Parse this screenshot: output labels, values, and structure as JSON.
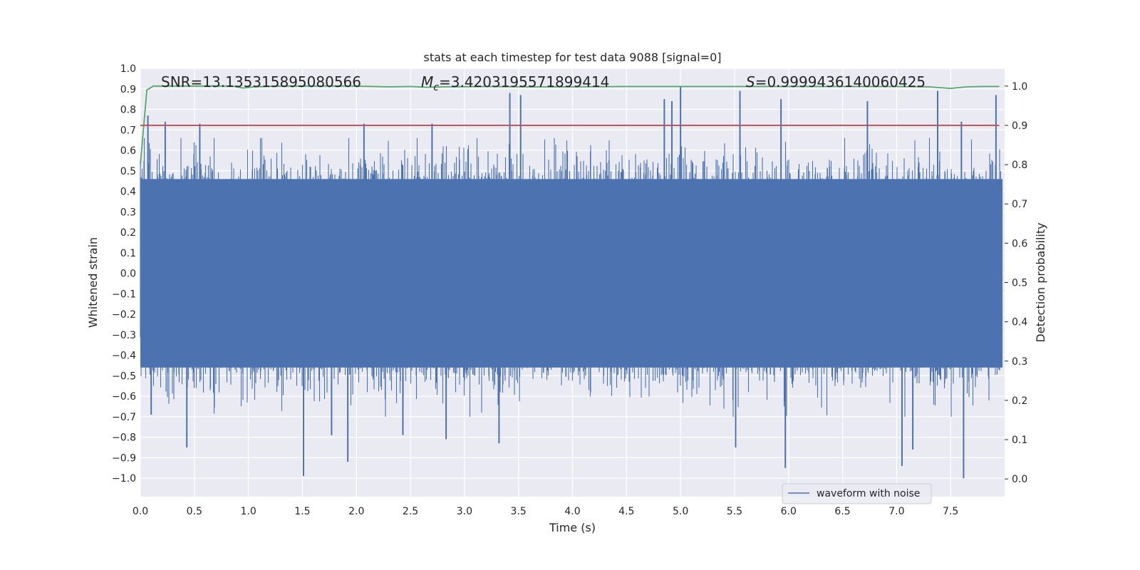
{
  "chart_data": {
    "type": "line",
    "title": "stats at each timestep for test data 9088 [signal=0]",
    "xlabel": "Time (s)",
    "ylabel": "Whitened strain",
    "y2label": "Detection probability",
    "xlim": [
      0.0,
      8.0
    ],
    "ylim": [
      -1.09,
      1.0
    ],
    "y2lim": [
      -0.045,
      1.045
    ],
    "xticks": [
      "0.0",
      "0.5",
      "1.0",
      "1.5",
      "2.0",
      "2.5",
      "3.0",
      "3.5",
      "4.0",
      "4.5",
      "5.0",
      "5.5",
      "6.0",
      "6.5",
      "7.0",
      "7.5"
    ],
    "xtick_values": [
      0,
      0.5,
      1,
      1.5,
      2,
      2.5,
      3,
      3.5,
      4,
      4.5,
      5,
      5.5,
      6,
      6.5,
      7,
      7.5
    ],
    "yticks": [
      "1.0",
      "0.9",
      "0.8",
      "0.7",
      "0.6",
      "0.5",
      "0.4",
      "0.3",
      "0.2",
      "0.1",
      "0.0",
      "−0.1",
      "−0.2",
      "−0.3",
      "−0.4",
      "−0.5",
      "−0.6",
      "−0.7",
      "−0.8",
      "−0.9",
      "−1.0"
    ],
    "ytick_values": [
      1.0,
      0.9,
      0.8,
      0.7,
      0.6,
      0.5,
      0.4,
      0.3,
      0.2,
      0.1,
      0.0,
      -0.1,
      -0.2,
      -0.3,
      -0.4,
      -0.5,
      -0.6,
      -0.7,
      -0.8,
      -0.9,
      -1.0
    ],
    "y2ticks": [
      "1.0",
      "0.9",
      "0.8",
      "0.7",
      "0.6",
      "0.5",
      "0.4",
      "0.3",
      "0.2",
      "0.1",
      "0.0"
    ],
    "y2tick_values": [
      1.0,
      0.9,
      0.8,
      0.7,
      0.6,
      0.5,
      0.4,
      0.3,
      0.2,
      0.1,
      0.0
    ],
    "annotations": {
      "snr": "SNR=13.135315895080566",
      "mc_symbol": "M",
      "mc_sub": "c",
      "mc_value": "=3.4203195571899414",
      "s_symbol": "S",
      "s_value": "=0.9999436140060425"
    },
    "legend": {
      "label": "waveform with noise",
      "placement": "lower-right"
    },
    "threshold": {
      "value": 0.9,
      "axis": "y2",
      "color": "#c44e52"
    },
    "series": [
      {
        "name": "waveform with noise",
        "axis": "y",
        "color": "#4c72b0",
        "style": "noise",
        "dense_band": [
          -0.46,
          0.46
        ],
        "peaks": [
          {
            "x": 0.07,
            "y": 0.77
          },
          {
            "x": 0.23,
            "y": 0.74
          },
          {
            "x": 0.55,
            "y": 0.73
          },
          {
            "x": 2.07,
            "y": 0.73
          },
          {
            "x": 2.7,
            "y": 0.73
          },
          {
            "x": 3.42,
            "y": 0.88
          },
          {
            "x": 3.52,
            "y": 0.87
          },
          {
            "x": 4.85,
            "y": 0.85
          },
          {
            "x": 4.92,
            "y": 0.84
          },
          {
            "x": 5.0,
            "y": 0.91
          },
          {
            "x": 5.55,
            "y": 0.89
          },
          {
            "x": 5.93,
            "y": 0.85
          },
          {
            "x": 6.73,
            "y": 0.84
          },
          {
            "x": 7.38,
            "y": 0.89
          },
          {
            "x": 7.6,
            "y": 0.74
          },
          {
            "x": 7.92,
            "y": 0.87
          }
        ],
        "troughs": [
          {
            "x": 0.1,
            "y": -0.69
          },
          {
            "x": 0.43,
            "y": -0.85
          },
          {
            "x": 1.51,
            "y": -0.99
          },
          {
            "x": 1.77,
            "y": -0.79
          },
          {
            "x": 1.92,
            "y": -0.92
          },
          {
            "x": 2.43,
            "y": -0.79
          },
          {
            "x": 2.83,
            "y": -0.81
          },
          {
            "x": 3.32,
            "y": -0.83
          },
          {
            "x": 5.51,
            "y": -0.85
          },
          {
            "x": 5.97,
            "y": -0.95
          },
          {
            "x": 7.05,
            "y": -0.94
          },
          {
            "x": 7.15,
            "y": -0.86
          },
          {
            "x": 7.62,
            "y": -1.0
          }
        ]
      },
      {
        "name": "detection probability",
        "axis": "y2",
        "color": "#55a868",
        "x": [
          0.0,
          0.06,
          0.12,
          0.3,
          0.6,
          0.85,
          0.95,
          1.05,
          1.3,
          1.6,
          2.0,
          2.3,
          2.5,
          2.65,
          2.8,
          3.2,
          3.6,
          4.0,
          4.5,
          5.0,
          5.5,
          6.0,
          6.5,
          7.0,
          7.3,
          7.4,
          7.5,
          7.65,
          7.8,
          7.95
        ],
        "y": [
          0.8,
          0.99,
          1.0,
          1.0,
          1.0,
          1.0,
          0.995,
          0.998,
          1.0,
          1.0,
          1.0,
          0.998,
          0.999,
          0.997,
          0.998,
          0.999,
          0.998,
          0.998,
          0.999,
          0.999,
          0.999,
          0.999,
          0.999,
          0.999,
          0.998,
          0.996,
          0.994,
          0.998,
          0.999,
          0.999
        ]
      }
    ]
  }
}
